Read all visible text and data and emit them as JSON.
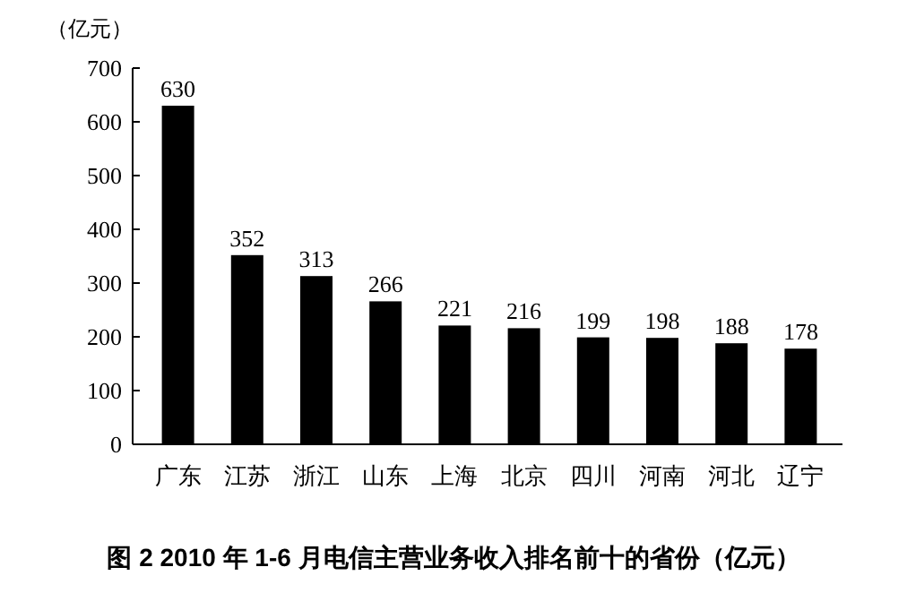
{
  "chart_data": {
    "type": "bar",
    "title": "图 2 2010 年 1-6 月电信主营业务收入排名前十的省份（亿元）",
    "ylabel": "（亿元）",
    "categories": [
      "广东",
      "江苏",
      "浙江",
      "山东",
      "上海",
      "北京",
      "四川",
      "河南",
      "河北",
      "辽宁"
    ],
    "values": [
      630,
      352,
      313,
      266,
      221,
      216,
      199,
      198,
      188,
      178
    ],
    "color": "#000000",
    "ylim": [
      0,
      700
    ],
    "yticks": [
      0,
      100,
      200,
      300,
      400,
      500,
      600,
      700
    ],
    "data_labels": true
  }
}
